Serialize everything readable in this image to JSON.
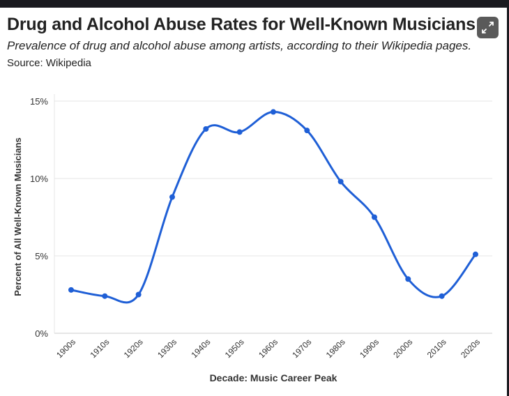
{
  "header": {
    "title": "Drug and Alcohol Abuse Rates for Well-Known Musicians",
    "subtitle": "Prevalence of drug and alcohol abuse among artists, according to their Wikipedia pages.",
    "source": "Source: Wikipedia",
    "expand_icon": "expand-icon"
  },
  "chart_data": {
    "type": "line",
    "title": "Drug and Alcohol Abuse Rates for Well-Known Musicians",
    "xlabel": "Decade: Music Career Peak",
    "ylabel": "Percent of All Well-Known Musicians",
    "categories": [
      "1900s",
      "1910s",
      "1920s",
      "1930s",
      "1940s",
      "1950s",
      "1960s",
      "1970s",
      "1980s",
      "1990s",
      "2000s",
      "2010s",
      "2020s"
    ],
    "values": [
      2.8,
      2.4,
      2.5,
      8.8,
      13.2,
      13.0,
      14.3,
      13.1,
      9.8,
      7.5,
      3.5,
      2.4,
      5.1
    ],
    "ylim": [
      0,
      15
    ],
    "yticks": [
      0,
      5,
      10,
      15
    ],
    "ytick_labels": [
      "0%",
      "5%",
      "10%",
      "15%"
    ],
    "grid": true,
    "line_color": "#1f5fd6"
  }
}
